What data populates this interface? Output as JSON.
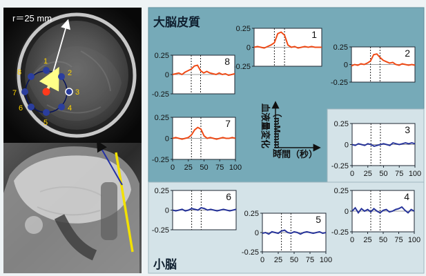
{
  "image_labels": {
    "radius": "r＝25 mm",
    "points": [
      "1",
      "2",
      "3",
      "4",
      "5",
      "6",
      "7",
      "8"
    ]
  },
  "sections": {
    "cortex": "大脳皮質",
    "cerebellum": "小脳"
  },
  "axis_key": {
    "y_label": "血液量変化",
    "y_unit": "（mMmm）",
    "x_label": "時間（秒）"
  },
  "colors": {
    "cortex_signal": "#ef4a16",
    "cerebellum_signal": "#27349a",
    "top_panel_bg": "#73aab8",
    "bottom_panel_bg": "#cfe0e6",
    "point_blue": "#2d3fa5",
    "point_red": "#ff2b1a"
  },
  "chart_data": [
    {
      "type": "line",
      "label": "1",
      "region": "大脳皮質",
      "x": [
        0,
        5,
        10,
        15,
        20,
        25,
        30,
        35,
        40,
        45,
        50,
        55,
        60,
        65,
        70,
        75,
        80,
        85,
        90,
        95,
        100
      ],
      "y": [
        0.0,
        0.01,
        0.0,
        -0.01,
        0.01,
        0.03,
        0.06,
        0.18,
        0.2,
        0.16,
        0.03,
        0.0,
        0.01,
        -0.01,
        0.0,
        0.01,
        0.0,
        0.01,
        0.0,
        0.0,
        0.0
      ],
      "xlim": [
        0,
        100
      ],
      "ylim": [
        -0.25,
        0.25
      ],
      "x_ticks": [
        "0",
        "25",
        "50",
        "75",
        "100"
      ],
      "y_ticks": [
        "0.25",
        "0",
        "-0.25"
      ],
      "show_x_ticks": false,
      "stimulus_window": [
        30,
        45
      ]
    },
    {
      "type": "line",
      "label": "2",
      "region": "大脳皮質",
      "x": [
        0,
        5,
        10,
        15,
        20,
        25,
        30,
        35,
        40,
        45,
        50,
        55,
        60,
        65,
        70,
        75,
        80,
        85,
        90,
        95,
        100
      ],
      "y": [
        -0.02,
        0.0,
        -0.01,
        0.01,
        0.0,
        0.02,
        0.05,
        0.14,
        0.15,
        0.1,
        0.06,
        0.04,
        0.02,
        0.03,
        0.0,
        -0.01,
        0.01,
        0.0,
        -0.01,
        0.0,
        -0.01
      ],
      "xlim": [
        0,
        100
      ],
      "ylim": [
        -0.25,
        0.25
      ],
      "x_ticks": [
        "0",
        "25",
        "50",
        "75",
        "100"
      ],
      "y_ticks": [
        "0.25",
        "0",
        "-0.25"
      ],
      "show_x_ticks": false,
      "stimulus_window": [
        30,
        45
      ]
    },
    {
      "type": "line",
      "label": "8",
      "region": "大脳皮質",
      "x": [
        0,
        5,
        10,
        15,
        20,
        25,
        30,
        35,
        40,
        45,
        50,
        55,
        60,
        65,
        70,
        75,
        80,
        85,
        90,
        95,
        100
      ],
      "y": [
        0.0,
        0.01,
        0.02,
        0.0,
        0.03,
        0.05,
        0.07,
        0.11,
        0.12,
        0.05,
        0.02,
        0.04,
        0.02,
        0.01,
        0.0,
        0.02,
        0.0,
        0.01,
        -0.01,
        0.0,
        0.01
      ],
      "xlim": [
        0,
        100
      ],
      "ylim": [
        -0.25,
        0.25
      ],
      "x_ticks": [
        "0",
        "25",
        "50",
        "75",
        "100"
      ],
      "y_ticks": [
        "0.25",
        "0",
        "-0.25"
      ],
      "show_x_ticks": false,
      "stimulus_window": [
        30,
        45
      ]
    },
    {
      "type": "line",
      "label": "7",
      "region": "大脳皮質",
      "x": [
        0,
        5,
        10,
        15,
        20,
        25,
        30,
        35,
        40,
        45,
        50,
        55,
        60,
        65,
        70,
        75,
        80,
        85,
        90,
        95,
        100
      ],
      "y": [
        0.0,
        0.01,
        0.0,
        -0.01,
        0.0,
        0.01,
        0.04,
        0.1,
        0.13,
        0.11,
        0.03,
        0.0,
        0.01,
        0.0,
        -0.01,
        0.0,
        0.01,
        0.0,
        0.0,
        0.01,
        0.0
      ],
      "xlim": [
        0,
        100
      ],
      "ylim": [
        -0.25,
        0.25
      ],
      "x_ticks": [
        "0",
        "25",
        "50",
        "75",
        "100"
      ],
      "y_ticks": [
        "0.25",
        "0",
        "-0.25"
      ],
      "show_x_ticks": true,
      "stimulus_window": [
        30,
        45
      ]
    },
    {
      "type": "line",
      "label": "3",
      "region": "小脳",
      "x": [
        0,
        5,
        10,
        15,
        20,
        25,
        30,
        35,
        40,
        45,
        50,
        55,
        60,
        65,
        70,
        75,
        80,
        85,
        90,
        95,
        100
      ],
      "y": [
        0.0,
        -0.01,
        0.01,
        0.0,
        -0.01,
        0.01,
        0.0,
        -0.02,
        -0.01,
        0.0,
        0.01,
        0.0,
        -0.01,
        0.02,
        0.01,
        0.0,
        0.01,
        0.02,
        0.01,
        0.02,
        0.01
      ],
      "xlim": [
        0,
        100
      ],
      "ylim": [
        -0.25,
        0.25
      ],
      "x_ticks": [
        "0",
        "25",
        "50",
        "75",
        "100"
      ],
      "y_ticks": [
        "0.25",
        "0",
        "-0.25"
      ],
      "show_x_ticks": true,
      "stimulus_window": [
        30,
        45
      ]
    },
    {
      "type": "line",
      "label": "6",
      "region": "小脳",
      "x": [
        0,
        5,
        10,
        15,
        20,
        25,
        30,
        35,
        40,
        45,
        50,
        55,
        60,
        65,
        70,
        75,
        80,
        85,
        90,
        95,
        100
      ],
      "y": [
        0.0,
        -0.01,
        0.0,
        0.01,
        -0.01,
        0.0,
        0.02,
        0.01,
        0.0,
        0.03,
        0.02,
        0.0,
        0.01,
        0.0,
        -0.01,
        0.0,
        0.01,
        0.0,
        -0.01,
        0.0,
        0.01
      ],
      "xlim": [
        0,
        100
      ],
      "ylim": [
        -0.25,
        0.25
      ],
      "x_ticks": [
        "0",
        "25",
        "50",
        "75",
        "100"
      ],
      "y_ticks": [
        "0.25",
        "0",
        "-0.25"
      ],
      "show_x_ticks": false,
      "stimulus_window": [
        30,
        45
      ]
    },
    {
      "type": "line",
      "label": "5",
      "region": "小脳",
      "x": [
        0,
        5,
        10,
        15,
        20,
        25,
        30,
        35,
        40,
        45,
        50,
        55,
        60,
        65,
        70,
        75,
        80,
        85,
        90,
        95,
        100
      ],
      "y": [
        -0.01,
        0.0,
        -0.02,
        0.01,
        0.0,
        -0.01,
        0.02,
        0.03,
        0.0,
        -0.01,
        0.01,
        0.0,
        -0.02,
        0.0,
        0.01,
        0.0,
        -0.01,
        0.0,
        0.01,
        -0.01,
        0.0
      ],
      "xlim": [
        0,
        100
      ],
      "ylim": [
        -0.25,
        0.25
      ],
      "x_ticks": [
        "0",
        "25",
        "50",
        "75",
        "100"
      ],
      "y_ticks": [
        "0.25",
        "0",
        "-0.25"
      ],
      "show_x_ticks": true,
      "stimulus_window": [
        30,
        45
      ]
    },
    {
      "type": "line",
      "label": "4",
      "region": "小脳",
      "x": [
        0,
        5,
        10,
        15,
        20,
        25,
        30,
        35,
        40,
        45,
        50,
        55,
        60,
        65,
        70,
        75,
        80,
        85,
        90,
        95,
        100
      ],
      "y": [
        0.0,
        0.04,
        -0.02,
        0.03,
        0.0,
        0.02,
        -0.01,
        0.03,
        0.0,
        -0.02,
        0.01,
        0.02,
        -0.01,
        0.0,
        0.02,
        0.03,
        0.05,
        0.01,
        -0.02,
        0.02,
        0.0
      ],
      "xlim": [
        0,
        100
      ],
      "ylim": [
        -0.25,
        0.25
      ],
      "x_ticks": [
        "0",
        "25",
        "50",
        "75",
        "100"
      ],
      "y_ticks": [
        "0.25",
        "0",
        "-0.25"
      ],
      "show_x_ticks": true,
      "stimulus_window": [
        30,
        45
      ]
    }
  ]
}
